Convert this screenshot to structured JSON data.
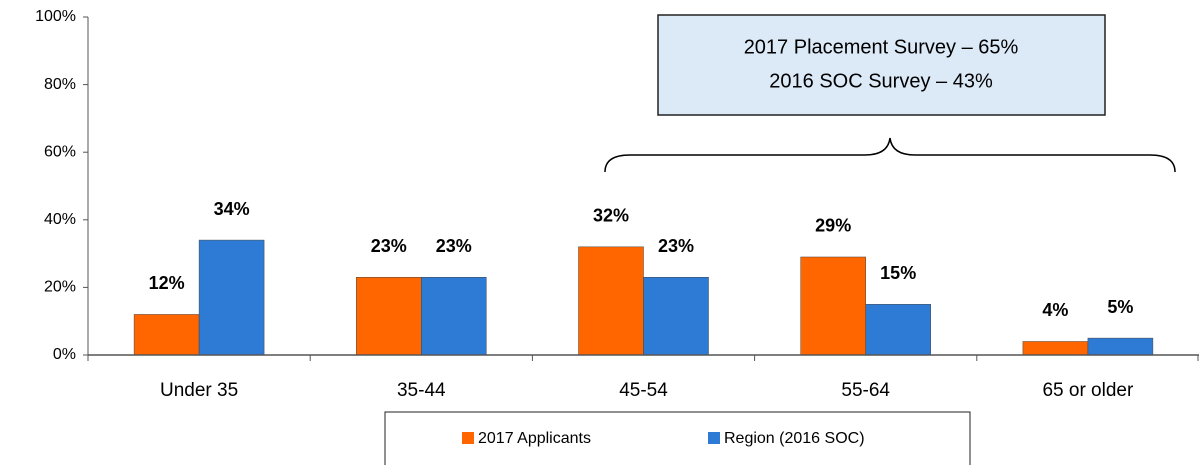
{
  "chart_data": {
    "type": "bar",
    "categories": [
      "Under 35",
      "35-44",
      "45-54",
      "55-64",
      "65 or older"
    ],
    "series": [
      {
        "name": "2017 Applicants",
        "color": "#ff6600",
        "values": [
          12,
          23,
          32,
          29,
          4
        ],
        "value_labels": [
          "12%",
          "23%",
          "32%",
          "29%",
          "4%"
        ]
      },
      {
        "name": "Region (2016 SOC)",
        "color": "#2e7bd6",
        "values": [
          34,
          23,
          23,
          15,
          5
        ],
        "value_labels": [
          "34%",
          "23%",
          "23%",
          "15%",
          "5%"
        ]
      }
    ],
    "ylim": [
      0,
      100
    ],
    "yticks": [
      {
        "value": 0,
        "label": "0%"
      },
      {
        "value": 20,
        "label": "20%"
      },
      {
        "value": 40,
        "label": "40%"
      },
      {
        "value": 60,
        "label": "60%"
      },
      {
        "value": 80,
        "label": "80%"
      },
      {
        "value": 100,
        "label": "100%"
      }
    ],
    "grid": false,
    "legend": "bottom",
    "annotation": [
      "2017 Placement Survey – 65%",
      "2016 SOC Survey – 43%"
    ]
  }
}
